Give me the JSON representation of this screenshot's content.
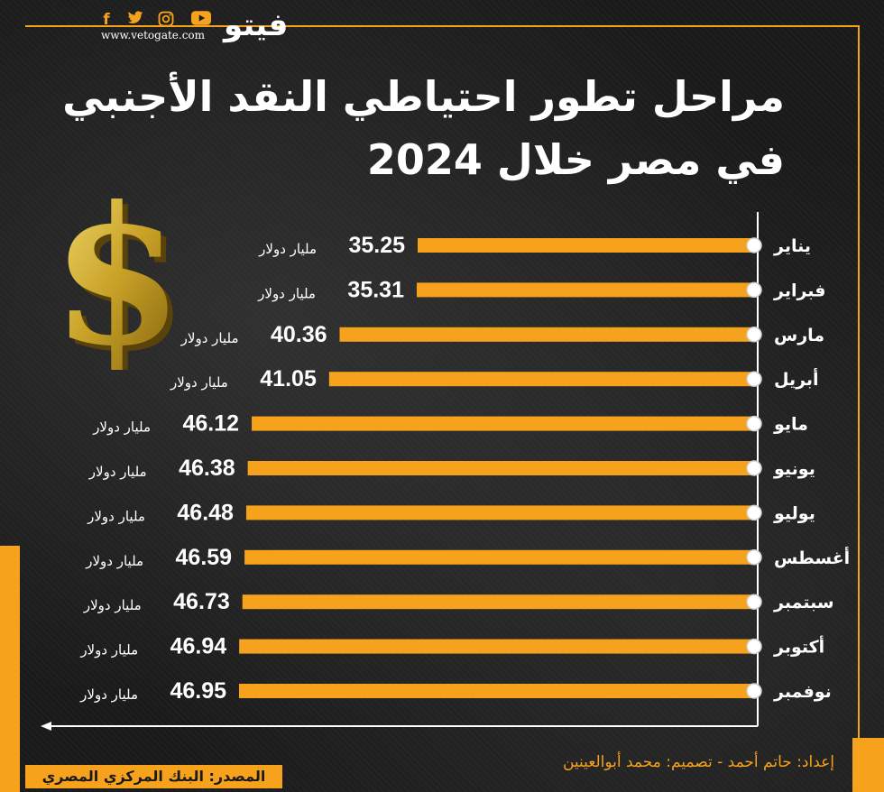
{
  "header": {
    "logo_text": "فيتو",
    "site_url": "www.vetogate.com",
    "social_icons": [
      "facebook-icon",
      "twitter-icon",
      "instagram-icon",
      "youtube-icon"
    ]
  },
  "title_line1": "مراحل تطور احتياطي النقد الأجنبي",
  "title_line2": "في مصر خلال 2024",
  "chart_data": {
    "type": "bar",
    "orientation": "horizontal",
    "categories": [
      "يناير",
      "فبراير",
      "مارس",
      "أبريل",
      "مايو",
      "يونيو",
      "يوليو",
      "أغسطس",
      "سبتمبر",
      "أكتوبر",
      "نوفمبر"
    ],
    "values": [
      35.25,
      35.31,
      40.36,
      41.05,
      46.12,
      46.38,
      46.48,
      46.59,
      46.73,
      46.94,
      46.95
    ],
    "value_labels": [
      "35.25",
      "35.31",
      "40.36",
      "41.05",
      "46.12",
      "46.38",
      "46.48",
      "46.59",
      "46.73",
      "46.94",
      "46.95"
    ],
    "unit_label": "مليار دولار",
    "bar_color": "#f6a21d",
    "axis_color": "#ffffff",
    "grid": false
  },
  "credits": "إعداد: حاتم أحمد  -  تصميم: محمد أبوالعينين",
  "source": "المصدر: البنك المركزي المصري",
  "colors": {
    "accent": "#f6a21d",
    "background": "#1a1a1a",
    "text": "#ffffff"
  }
}
